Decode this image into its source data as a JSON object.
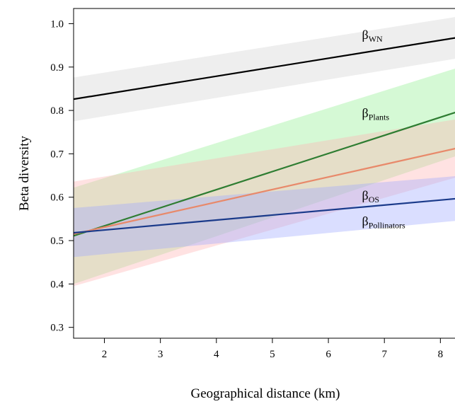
{
  "chart_data": {
    "type": "line",
    "title": "",
    "xlabel": "Geographical distance (km)",
    "ylabel": "Beta diversity",
    "xlim": [
      1.45,
      8.4
    ],
    "ylim": [
      0.275,
      1.035
    ],
    "xticks": [
      2,
      3,
      4,
      5,
      6,
      7,
      8
    ],
    "yticks": [
      0.3,
      0.4,
      0.5,
      0.6,
      0.7,
      0.8,
      0.9,
      1.0
    ],
    "ytick_labels": [
      "0.3",
      "0.4",
      "0.5",
      "0.6",
      "0.7",
      "0.8",
      "0.9",
      "1.0"
    ],
    "grid": false,
    "legend": "inline labels at right",
    "series": [
      {
        "id": "wn",
        "label_main": "β",
        "label_sub": "WN",
        "color": "#000000",
        "band_color": "#d3d3d3",
        "x": [
          1.45,
          8.4
        ],
        "y": [
          0.826,
          0.97
        ],
        "ci_lower": [
          0.775,
          0.922
        ],
        "ci_upper": [
          0.876,
          1.018
        ]
      },
      {
        "id": "plants",
        "label_main": "β",
        "label_sub": "Plants",
        "color": "#2e7d32",
        "band_color": "#90ee90",
        "x": [
          1.45,
          8.4
        ],
        "y": [
          0.511,
          0.801
        ],
        "ci_lower": [
          0.4,
          0.7
        ],
        "ci_upper": [
          0.622,
          0.902
        ]
      },
      {
        "id": "os",
        "label_main": "β",
        "label_sub": "OS",
        "color": "#e8896a",
        "band_color": "#ffb3b3",
        "x": [
          1.45,
          8.4
        ],
        "y": [
          0.515,
          0.716
        ],
        "ci_lower": [
          0.395,
          0.65
        ],
        "ci_upper": [
          0.636,
          0.782
        ]
      },
      {
        "id": "pollinators",
        "label_main": "β",
        "label_sub": "Pollinators",
        "color": "#1a3a8a",
        "band_color": "#9fa8ff",
        "x": [
          1.45,
          8.4
        ],
        "y": [
          0.518,
          0.598
        ],
        "ci_lower": [
          0.462,
          0.547
        ],
        "ci_upper": [
          0.575,
          0.65
        ]
      }
    ]
  }
}
